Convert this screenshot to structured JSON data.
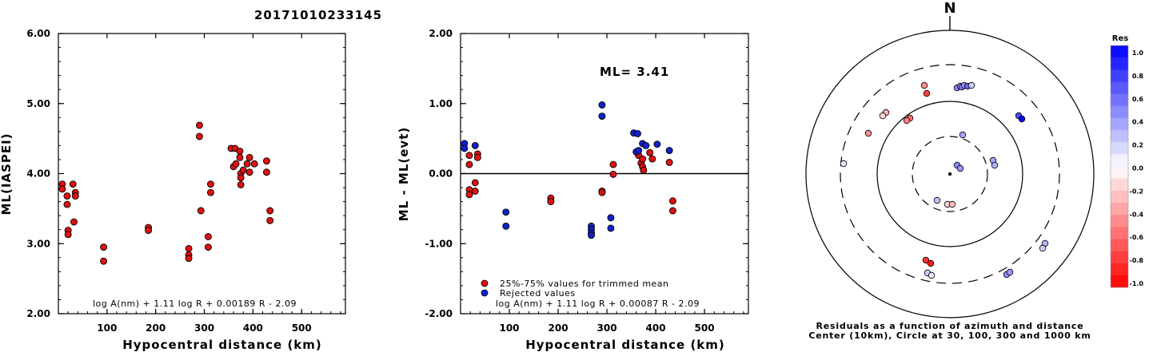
{
  "title": "20171010233145",
  "chart_data": [
    {
      "type": "scatter",
      "xlabel": "Hypocentral distance (km)",
      "ylabel": "ML(IASPEI)",
      "xlim": [
        0,
        590
      ],
      "ylim": [
        2.0,
        6.0
      ],
      "x_ticks": [
        "100",
        "200",
        "300",
        "400",
        "500"
      ],
      "y_ticks": [
        "2.00",
        "3.00",
        "4.00",
        "5.00",
        "6.00"
      ],
      "formula": "log A(nm) + 1.11 log R + 0.00189 R - 2.09",
      "series": [
        {
          "color": "#dd1111",
          "points": [
            [
              8,
              3.85
            ],
            [
              8,
              3.78
            ],
            [
              18,
              3.68
            ],
            [
              18,
              3.56
            ],
            [
              20,
              3.19
            ],
            [
              20,
              3.13
            ],
            [
              30,
              3.85
            ],
            [
              32,
              3.31
            ],
            [
              35,
              3.73
            ],
            [
              35,
              3.68
            ],
            [
              93,
              2.95
            ],
            [
              93,
              2.75
            ],
            [
              185,
              3.23
            ],
            [
              185,
              3.19
            ],
            [
              268,
              2.93
            ],
            [
              268,
              2.84
            ],
            [
              268,
              2.79
            ],
            [
              290,
              4.69
            ],
            [
              290,
              4.53
            ],
            [
              293,
              3.47
            ],
            [
              308,
              3.1
            ],
            [
              308,
              2.95
            ],
            [
              313,
              3.85
            ],
            [
              313,
              3.73
            ],
            [
              355,
              4.36
            ],
            [
              360,
              4.1
            ],
            [
              363,
              4.36
            ],
            [
              365,
              4.14
            ],
            [
              373,
              4.32
            ],
            [
              373,
              4.23
            ],
            [
              375,
              4.0
            ],
            [
              375,
              3.94
            ],
            [
              375,
              3.84
            ],
            [
              380,
              4.05
            ],
            [
              388,
              4.14
            ],
            [
              393,
              4.23
            ],
            [
              393,
              4.02
            ],
            [
              403,
              4.14
            ],
            [
              428,
              4.18
            ],
            [
              428,
              4.02
            ],
            [
              435,
              3.47
            ],
            [
              435,
              3.33
            ]
          ]
        }
      ]
    },
    {
      "type": "scatter",
      "xlabel": "Hypocentral distance (km)",
      "ylabel": "ML - ML(evt)",
      "xlim": [
        0,
        590
      ],
      "ylim": [
        -2.0,
        2.0
      ],
      "x_ticks": [
        "100",
        "200",
        "300",
        "400",
        "500"
      ],
      "y_ticks": [
        "-2.00",
        "-1.00",
        "0.00",
        "1.00",
        "2.00"
      ],
      "ml_label": "ML= 3.41",
      "legend": [
        "25%-75% values for trimmed mean",
        "Rejected values"
      ],
      "formula": "log A(nm) + 1.11 log R + 0.00087 R - 2.09",
      "series": [
        {
          "name": "25%-75% values for trimmed mean",
          "color": "#dd1111",
          "points": [
            [
              18,
              0.26
            ],
            [
              18,
              0.13
            ],
            [
              18,
              -0.23
            ],
            [
              18,
              -0.3
            ],
            [
              35,
              0.28
            ],
            [
              35,
              0.23
            ],
            [
              30,
              -0.13
            ],
            [
              30,
              -0.25
            ],
            [
              185,
              -0.35
            ],
            [
              185,
              -0.4
            ],
            [
              290,
              -0.25
            ],
            [
              290,
              -0.27
            ],
            [
              313,
              0.13
            ],
            [
              313,
              -0.01
            ],
            [
              365,
              0.26
            ],
            [
              370,
              0.15
            ],
            [
              373,
              0.21
            ],
            [
              373,
              0.1
            ],
            [
              375,
              0.05
            ],
            [
              388,
              0.3
            ],
            [
              393,
              0.21
            ],
            [
              428,
              0.16
            ],
            [
              435,
              -0.39
            ],
            [
              435,
              -0.53
            ]
          ]
        },
        {
          "name": "Rejected values",
          "color": "#1122cc",
          "points": [
            [
              8,
              0.43
            ],
            [
              8,
              0.36
            ],
            [
              30,
              0.4
            ],
            [
              93,
              -0.55
            ],
            [
              93,
              -0.75
            ],
            [
              268,
              -0.75
            ],
            [
              268,
              -0.8
            ],
            [
              268,
              -0.85
            ],
            [
              268,
              -0.88
            ],
            [
              290,
              0.98
            ],
            [
              290,
              0.82
            ],
            [
              308,
              -0.63
            ],
            [
              308,
              -0.78
            ],
            [
              355,
              0.58
            ],
            [
              360,
              0.31
            ],
            [
              363,
              0.57
            ],
            [
              365,
              0.33
            ],
            [
              373,
              0.43
            ],
            [
              380,
              0.4
            ],
            [
              403,
              0.42
            ],
            [
              428,
              0.33
            ]
          ]
        }
      ]
    }
  ],
  "polar": {
    "north_label": "N",
    "caption_line1": "Residuals as a function of azimuth and distance",
    "caption_line2": "Center (10km), Circle at 30, 100, 300 and 1000 km",
    "points": [
      {
        "dx": -32,
        "dy": -111,
        "res": -0.45
      },
      {
        "dx": -29,
        "dy": -101,
        "res": -0.75
      },
      {
        "dx": 9,
        "dy": -108,
        "res": 0.45
      },
      {
        "dx": 13,
        "dy": -110,
        "res": 0.35
      },
      {
        "dx": 15,
        "dy": -109,
        "res": 0.5
      },
      {
        "dx": 18,
        "dy": -111,
        "res": 0.4
      },
      {
        "dx": 22,
        "dy": -110,
        "res": 0.6
      },
      {
        "dx": 27,
        "dy": -111,
        "res": 0.2
      },
      {
        "dx": -80,
        "dy": -77,
        "res": -0.3
      },
      {
        "dx": -84,
        "dy": -73,
        "res": -0.15
      },
      {
        "dx": -50,
        "dy": -70,
        "res": -0.55
      },
      {
        "dx": -54,
        "dy": -67,
        "res": -0.5
      },
      {
        "dx": 86,
        "dy": -73,
        "res": 0.7
      },
      {
        "dx": 90,
        "dy": -69,
        "res": 1.0
      },
      {
        "dx": -102,
        "dy": -51,
        "res": -0.45
      },
      {
        "dx": 16,
        "dy": -49,
        "res": 0.35
      },
      {
        "dx": -133,
        "dy": -13,
        "res": 0.1
      },
      {
        "dx": 54,
        "dy": -17,
        "res": 0.35
      },
      {
        "dx": 56,
        "dy": -11,
        "res": 0.3
      },
      {
        "dx": 9,
        "dy": -11,
        "res": 0.45
      },
      {
        "dx": 13,
        "dy": -7,
        "res": 0.4
      },
      {
        "dx": -16,
        "dy": 33,
        "res": 0.25
      },
      {
        "dx": -3,
        "dy": 38,
        "res": -0.2
      },
      {
        "dx": 3,
        "dy": 38,
        "res": -0.25
      },
      {
        "dx": 119,
        "dy": 87,
        "res": 0.3
      },
      {
        "dx": 116,
        "dy": 93,
        "res": 0.2
      },
      {
        "dx": -30,
        "dy": 108,
        "res": -0.8
      },
      {
        "dx": -24,
        "dy": 112,
        "res": -0.9
      },
      {
        "dx": -28,
        "dy": 124,
        "res": 0.2
      },
      {
        "dx": -23,
        "dy": 127,
        "res": 0.1
      },
      {
        "dx": 71,
        "dy": 126,
        "res": 0.45
      },
      {
        "dx": 75,
        "dy": 123,
        "res": 0.4
      }
    ]
  },
  "colorbar": {
    "title": "Res",
    "ticks": [
      "1.0",
      "0.8",
      "0.6",
      "0.4",
      "0.2",
      "0.0",
      "-0.2",
      "-0.4",
      "-0.6",
      "-0.8",
      "-1.0"
    ]
  }
}
